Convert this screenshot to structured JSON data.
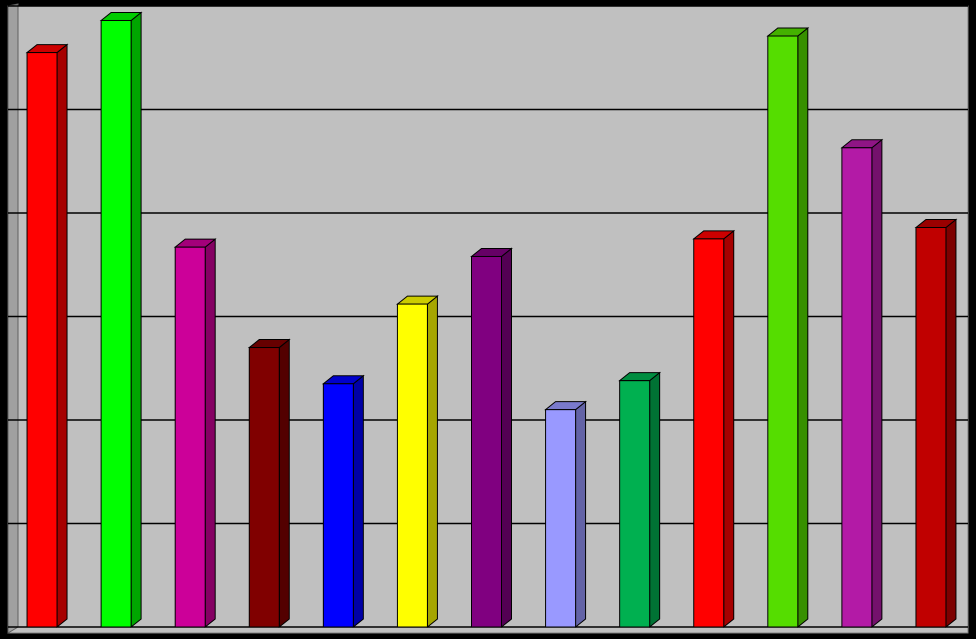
{
  "chart_data": {
    "type": "bar3d",
    "values": [
      5.55,
      5.86,
      3.67,
      2.7,
      2.35,
      3.12,
      3.58,
      2.1,
      2.38,
      3.75,
      5.71,
      4.63,
      3.86
    ],
    "colors": [
      "#ff0000",
      "#00ff00",
      "#cc0099",
      "#800000",
      "#0000ff",
      "#ffff00",
      "#800080",
      "#9999ff",
      "#00b050",
      "#ff0000",
      "#55dd00",
      "#b31aa6",
      "#c00000"
    ],
    "ylim": [
      0,
      6
    ],
    "yticks": [
      0,
      1,
      2,
      3,
      4,
      5,
      6
    ],
    "grid": true
  }
}
